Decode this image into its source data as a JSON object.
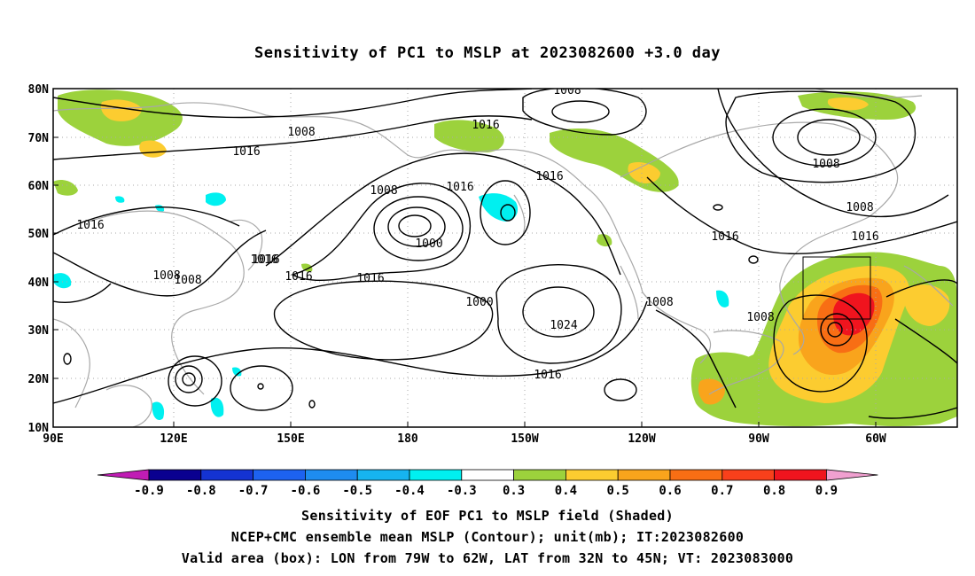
{
  "title": "Sensitivity of PC1 to MSLP at 2023082600 +3.0 day",
  "lat_ticks": [
    "80N",
    "70N",
    "60N",
    "50N",
    "40N",
    "30N",
    "20N",
    "10N"
  ],
  "lon_ticks": [
    "90E",
    "120E",
    "150E",
    "180",
    "150W",
    "120W",
    "90W",
    "60W"
  ],
  "contour_labels": [
    "1008",
    "1008",
    "1016",
    "1016",
    "1008",
    "1016",
    "1016",
    "1008",
    "1000",
    "1016",
    "1008",
    "1016",
    "1016",
    "1016",
    "1000",
    "1008",
    "1016",
    "1016",
    "1008",
    "1024",
    "1008",
    "1016",
    "1008",
    "1016"
  ],
  "colorbar": {
    "labels": [
      "-0.9",
      "-0.8",
      "-0.7",
      "-0.6",
      "-0.5",
      "-0.4",
      "-0.3",
      "0.3",
      "0.4",
      "0.5",
      "0.6",
      "0.7",
      "0.8",
      "0.9"
    ],
    "colors": [
      "#0a0090",
      "#1433d2",
      "#1d62f0",
      "#1e8cf0",
      "#16b4f0",
      "#00f0f0",
      "#ffffff",
      "#9cd23c",
      "#fccc30",
      "#f9a41c",
      "#f86e14",
      "#f8401b",
      "#f0141e"
    ],
    "low_end_color": "#c01cb4",
    "high_end_color": "#f0a0d0"
  },
  "captions": [
    "Sensitivity of EOF PC1 to MSLP field (Shaded)",
    "NCEP+CMC ensemble mean MSLP (Contour); unit(mb); IT:2023082600",
    "Valid area (box): LON from 79W to 62W, LAT from 32N to 45N; VT: 2023083000"
  ],
  "map": {
    "lon_range": [
      "90E",
      "50W"
    ],
    "lat_range": [
      "10N",
      "80N"
    ],
    "valid_box": {
      "lon": [
        "79W",
        "62W"
      ],
      "lat": [
        "32N",
        "45N"
      ]
    }
  }
}
